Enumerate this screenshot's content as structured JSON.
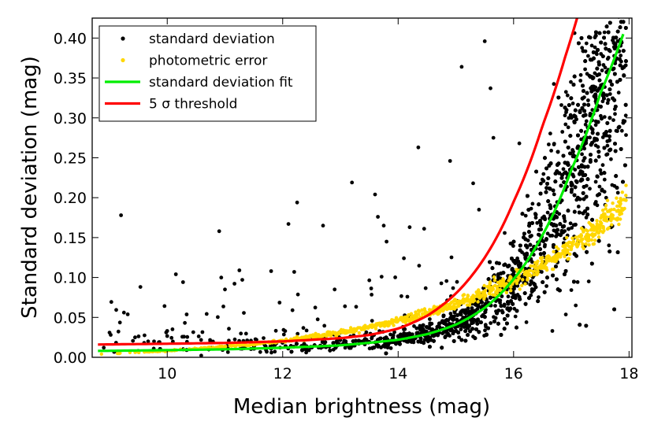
{
  "chart_data": {
    "type": "scatter",
    "title": "",
    "xlabel": "Median brightness (mag)",
    "ylabel": "Standard deviation (mag)",
    "xlim": [
      8.7,
      18.05
    ],
    "ylim": [
      0.0,
      0.425
    ],
    "xticks": [
      10,
      12,
      14,
      16,
      18
    ],
    "xtick_labels": [
      "10",
      "12",
      "14",
      "16",
      "18"
    ],
    "yticks": [
      0.0,
      0.05,
      0.1,
      0.15,
      0.2,
      0.25,
      0.3,
      0.35,
      0.4
    ],
    "ytick_labels": [
      "0.00",
      "0.05",
      "0.10",
      "0.15",
      "0.20",
      "0.25",
      "0.30",
      "0.35",
      "0.40"
    ],
    "legend_position": "top-left",
    "colors": {
      "std_points": "#000000",
      "phot_points": "#ffd700",
      "std_fit": "#00ee00",
      "threshold": "#ff0000"
    },
    "series": [
      {
        "name": "standard deviation",
        "kind": "scatter",
        "model": "std_fit_plus_scatter",
        "outliers": [
          [
            9.2,
            0.178
          ],
          [
            9.25,
            0.056
          ],
          [
            10.15,
            0.104
          ],
          [
            10.9,
            0.158
          ],
          [
            11.25,
            0.109
          ],
          [
            11.3,
            0.097
          ],
          [
            11.8,
            0.108
          ],
          [
            12.1,
            0.167
          ],
          [
            12.25,
            0.194
          ],
          [
            12.2,
            0.107
          ],
          [
            12.7,
            0.165
          ],
          [
            13.2,
            0.219
          ],
          [
            13.6,
            0.204
          ],
          [
            13.75,
            0.165
          ],
          [
            13.65,
            0.176
          ],
          [
            13.8,
            0.145
          ],
          [
            14.2,
            0.163
          ],
          [
            14.35,
            0.263
          ],
          [
            14.45,
            0.161
          ],
          [
            14.9,
            0.246
          ],
          [
            15.1,
            0.364
          ],
          [
            15.5,
            0.396
          ],
          [
            15.6,
            0.337
          ],
          [
            15.3,
            0.218
          ],
          [
            15.4,
            0.185
          ],
          [
            16.1,
            0.268
          ],
          [
            15.65,
            0.275
          ],
          [
            14.1,
            0.124
          ],
          [
            12.9,
            0.085
          ],
          [
            11.0,
            0.085
          ],
          [
            9.0,
            0.031
          ],
          [
            9.6,
            0.018
          ],
          [
            8.9,
            0.012
          ]
        ]
      },
      {
        "name": "photometric error",
        "kind": "scatter",
        "model": "photometric_error_curve",
        "x_range": [
          8.8,
          17.95
        ],
        "y_start": 0.004,
        "y_end": 0.195
      },
      {
        "name": "standard deviation fit",
        "kind": "line",
        "x": [
          8.8,
          10.0,
          11.0,
          12.0,
          13.0,
          14.0,
          14.5,
          15.0,
          15.5,
          16.0,
          16.5,
          17.0,
          17.5,
          17.9
        ],
        "y": [
          0.008,
          0.009,
          0.01,
          0.012,
          0.015,
          0.022,
          0.029,
          0.041,
          0.062,
          0.098,
          0.153,
          0.235,
          0.33,
          0.405
        ]
      },
      {
        "name": "5 σ threshold",
        "kind": "line",
        "x": [
          8.8,
          10.0,
          11.0,
          12.0,
          13.0,
          13.5,
          14.0,
          14.5,
          15.0,
          15.5,
          16.0,
          16.5,
          16.9,
          17.1
        ],
        "y": [
          0.016,
          0.017,
          0.018,
          0.02,
          0.024,
          0.028,
          0.036,
          0.052,
          0.08,
          0.125,
          0.195,
          0.29,
          0.378,
          0.425
        ]
      }
    ]
  }
}
